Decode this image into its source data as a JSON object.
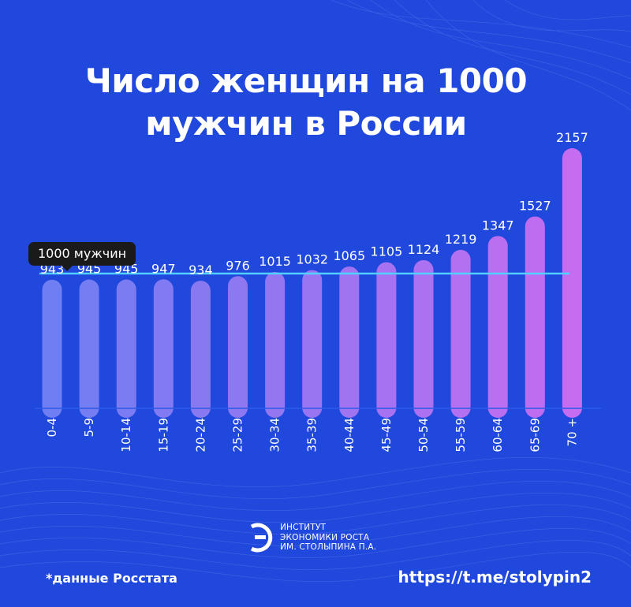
{
  "title_line1": "Число женщин на 1000",
  "title_line2": "мужчин в России",
  "reference_label": "1000 мужчин",
  "footnote": "*данные Росстата",
  "link": "https://t.me/stolypin2",
  "logo": {
    "line1": "ИНСТИТУТ",
    "line2": "ЭКОНОМИКИ РОСТА",
    "line3": "ИМ. СТОЛЫПИНА П.А."
  },
  "colors": {
    "background": "#2048dc",
    "bar_start": "#6f7ef2",
    "bar_end": "#c56cf0",
    "reference_line": "#4fd0ff"
  },
  "chart_data": {
    "type": "bar",
    "categories": [
      "0-4",
      "5-9",
      "10-14",
      "15-19",
      "20-24",
      "25-29",
      "30-34",
      "35-39",
      "40-44",
      "45-49",
      "50-54",
      "55-59",
      "60-64",
      "65-69",
      "70 +"
    ],
    "values": [
      943,
      945,
      945,
      947,
      934,
      976,
      1015,
      1032,
      1065,
      1105,
      1124,
      1219,
      1347,
      1527,
      2157
    ],
    "reference_value": 1000,
    "title": "Число женщин на 1000 мужчин в России",
    "xlabel": "",
    "ylabel": "",
    "grid": false,
    "legend": "none"
  }
}
